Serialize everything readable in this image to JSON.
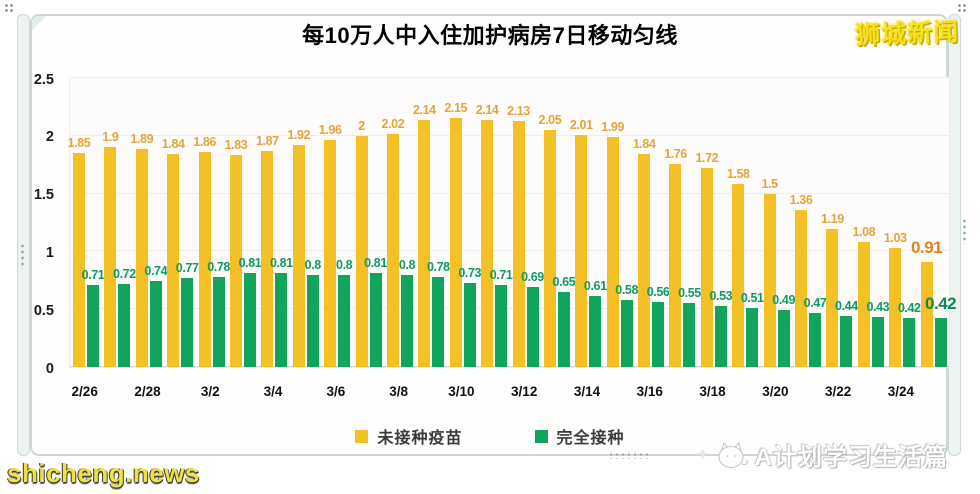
{
  "window": {
    "logo": "狮城新闻",
    "watermark_left": "shicheng.news",
    "watermark_right": "A计划学习生活篇"
  },
  "chart_data": {
    "type": "bar",
    "title": "每10万人中入住加护病房7日移动匀线",
    "n_bars_per_series": 28,
    "x_tick_labels": [
      "2/26",
      "2/28",
      "3/2",
      "3/4",
      "3/6",
      "3/8",
      "3/10",
      "3/12",
      "3/14",
      "3/16",
      "3/18",
      "3/20",
      "3/22",
      "3/24"
    ],
    "x_tick_every": 2,
    "series": [
      {
        "name": "未接种疫苗",
        "color": "#F3C125",
        "label_color": "#E5A33C",
        "final_label_color": "#E2831F",
        "values": [
          1.85,
          1.9,
          1.89,
          1.84,
          1.86,
          1.83,
          1.87,
          1.92,
          1.96,
          2,
          2.02,
          2.14,
          2.15,
          2.14,
          2.13,
          2.05,
          2.01,
          1.99,
          1.84,
          1.76,
          1.72,
          1.58,
          1.5,
          1.36,
          1.19,
          1.08,
          1.03,
          0.91
        ]
      },
      {
        "name": "完全接种",
        "color": "#12A35D",
        "label_color": "#0E9B66",
        "final_label_color": "#0A8A50",
        "values": [
          0.71,
          0.72,
          0.74,
          0.77,
          0.78,
          0.81,
          0.81,
          0.8,
          0.8,
          0.81,
          0.8,
          0.78,
          0.73,
          0.71,
          0.69,
          0.65,
          0.61,
          0.58,
          0.56,
          0.55,
          0.53,
          0.51,
          0.49,
          0.47,
          0.44,
          0.43,
          0.42,
          0.42
        ]
      }
    ],
    "ylim": [
      0,
      2.5
    ],
    "yticks": [
      "0",
      "0.5",
      "1",
      "1.5",
      "2",
      "2.5"
    ],
    "grid": "horizontal",
    "legend_position": "bottom"
  }
}
